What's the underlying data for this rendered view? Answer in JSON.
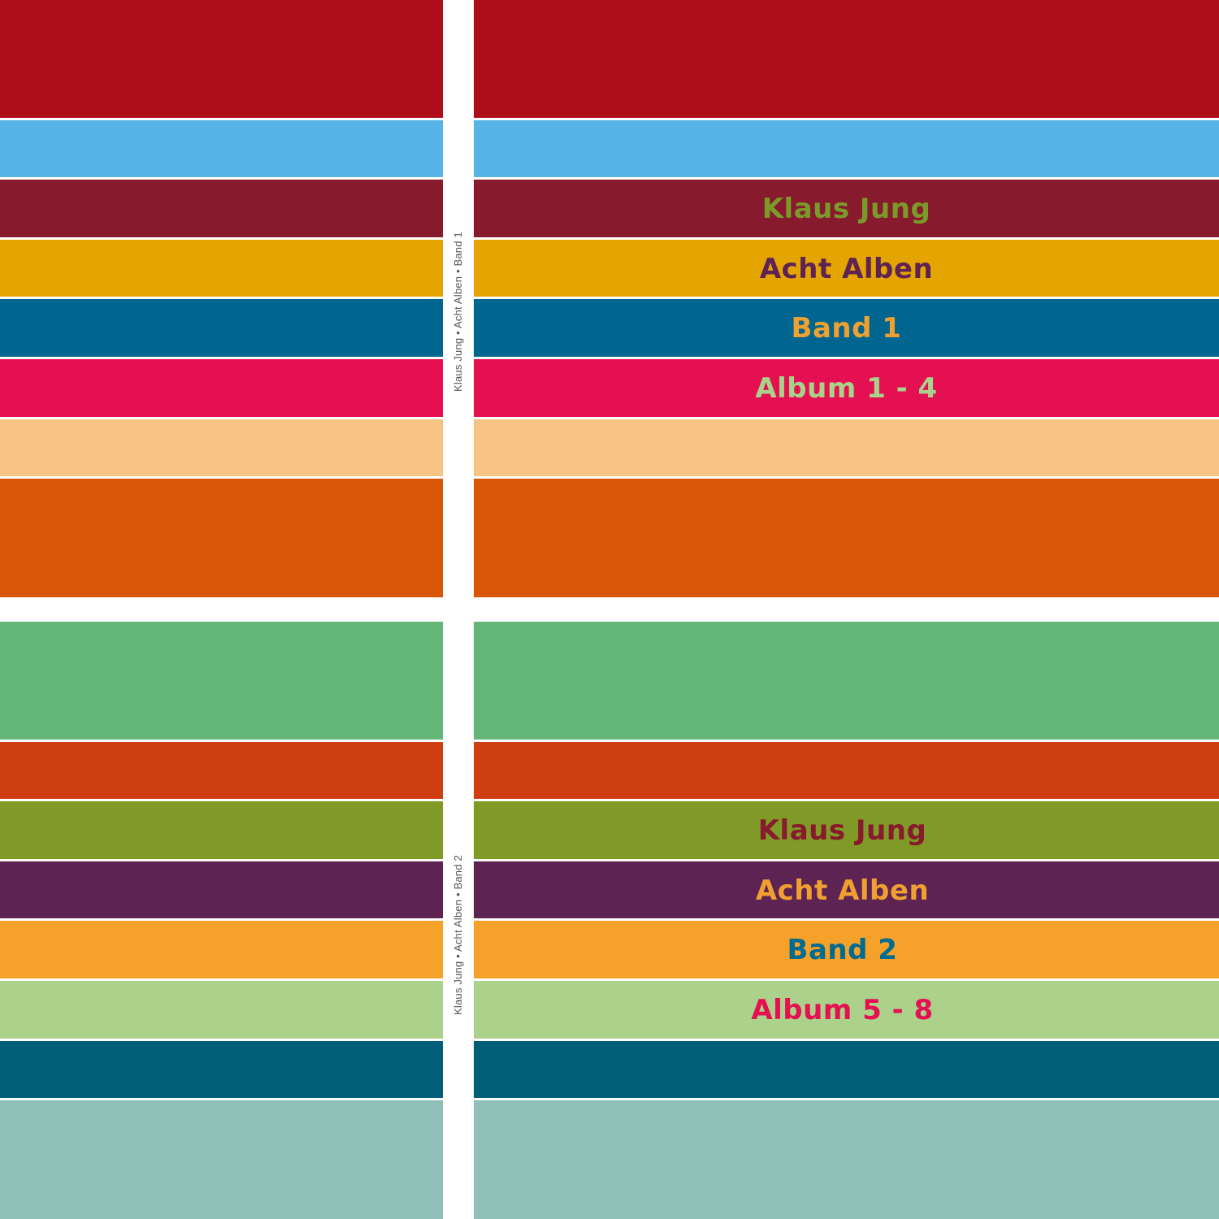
{
  "cover1": {
    "spine_text": "Klaus Jung • Acht Alben • Band 1",
    "stripes": [
      "#ae0e19",
      "#56b4e8",
      "#871a2d",
      "#e5a500",
      "#00668f",
      "#e51052",
      "#f8c483",
      "#d95508"
    ],
    "title": {
      "author": "Klaus Jung",
      "series": "Acht Alben",
      "volume": "Band 1",
      "albums": "Album 1 - 4"
    },
    "title_colors": {
      "author": "#7b9a2a",
      "series": "#5e2354",
      "volume": "#f0a030",
      "albums": "#a9d28a"
    }
  },
  "cover2": {
    "spine_text": "Klaus Jung • Acht Alben • Band 2",
    "stripes": [
      "#63b676",
      "#cf3e10",
      "#7f9a26",
      "#5c2353",
      "#f5a12a",
      "#abd18a",
      "#005e77",
      "#8fc0b8"
    ],
    "title": {
      "author": "Klaus Jung",
      "series": "Acht Alben",
      "volume": "Band 2",
      "albums": "Album 5 - 8"
    },
    "title_colors": {
      "author": "#871a2d",
      "series": "#f0a030",
      "volume": "#006b91",
      "albums": "#e51052"
    }
  }
}
